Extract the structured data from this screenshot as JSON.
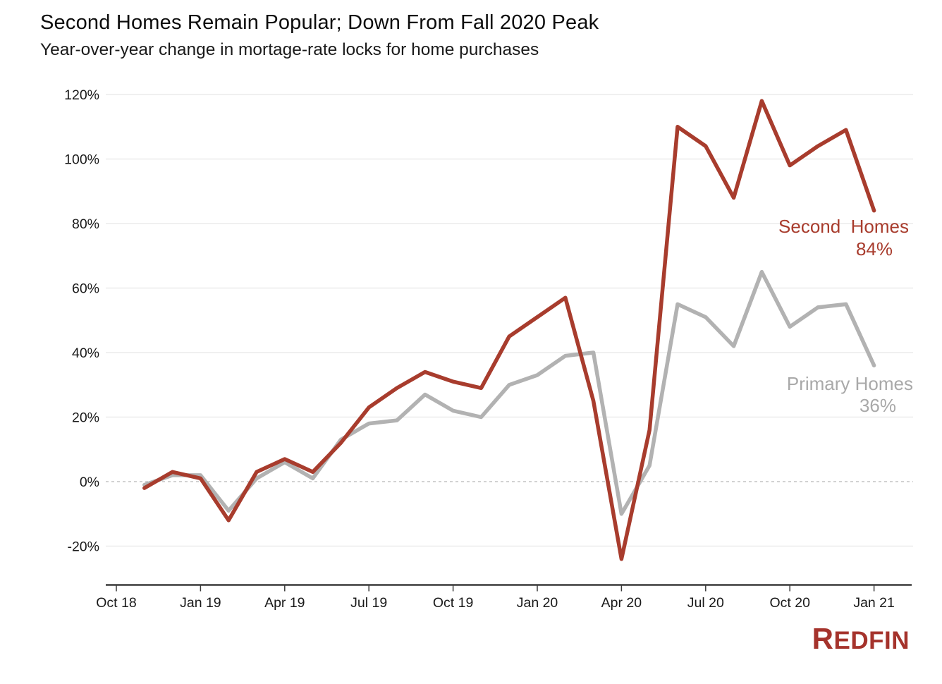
{
  "chart": {
    "title": "Second Homes Remain Popular; Down From Fall 2020 Peak",
    "subtitle": "Year-over-year change in mortage-rate locks for home purchases",
    "series_labels": {
      "second": {
        "name": "Second  Homes",
        "value": "84%"
      },
      "primary": {
        "name": "Primary Homes",
        "value": "36%"
      }
    }
  },
  "footer": {
    "logo_text": "REDFIN"
  },
  "colors": {
    "second_homes_line": "#a83c2d",
    "primary_homes_line": "#b2b2b2",
    "gridline": "#ececec",
    "zero_line": "#c4c4c4",
    "axis_line": "#3a3a3a",
    "logo_red": "#a5332c"
  },
  "chart_data": {
    "type": "line",
    "x": [
      "Nov 18",
      "Dec 18",
      "Jan 19",
      "Feb 19",
      "Mar 19",
      "Apr 19",
      "May 19",
      "Jun 19",
      "Jul 19",
      "Aug 19",
      "Sep 19",
      "Oct 19",
      "Nov 19",
      "Dec 19",
      "Jan 20",
      "Feb 20",
      "Mar 20",
      "Apr 20",
      "May 20",
      "Jun 20",
      "Jul 20",
      "Aug 20",
      "Sep 20",
      "Oct 20",
      "Nov 20",
      "Dec 20",
      "Jan 21"
    ],
    "series": [
      {
        "name": "Second Homes",
        "color": "#a83c2d",
        "end_label": "84%",
        "values": [
          -2,
          3,
          1,
          -12,
          3,
          7,
          3,
          12,
          23,
          29,
          34,
          31,
          29,
          45,
          51,
          57,
          25,
          -24,
          16,
          110,
          104,
          88,
          118,
          98,
          104,
          109,
          84
        ]
      },
      {
        "name": "Primary Homes",
        "color": "#b2b2b2",
        "end_label": "36%",
        "values": [
          -1,
          2,
          2,
          -9,
          1,
          6,
          1,
          13,
          18,
          19,
          27,
          22,
          20,
          30,
          33,
          39,
          40,
          -10,
          5,
          55,
          51,
          42,
          65,
          48,
          54,
          55,
          36
        ]
      }
    ],
    "title": "Second Homes Remain Popular; Down From Fall 2020 Peak",
    "subtitle": "Year-over-year change in mortage-rate locks for home purchases",
    "xlabel": "",
    "ylabel": "",
    "x_tick_labels": [
      "Oct 18",
      "Jan 19",
      "Apr 19",
      "Jul 19",
      "Oct 19",
      "Jan 20",
      "Apr 20",
      "Jul 20",
      "Oct 20",
      "Jan 21"
    ],
    "x_tick_interval_months": 3,
    "first_point_month_offset": 1,
    "y_ticks": [
      -20,
      0,
      20,
      40,
      60,
      80,
      100,
      120
    ],
    "y_tick_suffix": "%",
    "ylim": [
      -30,
      125
    ],
    "grid": "horizontal",
    "zero_line": "dashed",
    "legend_position": "inline-right-labels"
  }
}
